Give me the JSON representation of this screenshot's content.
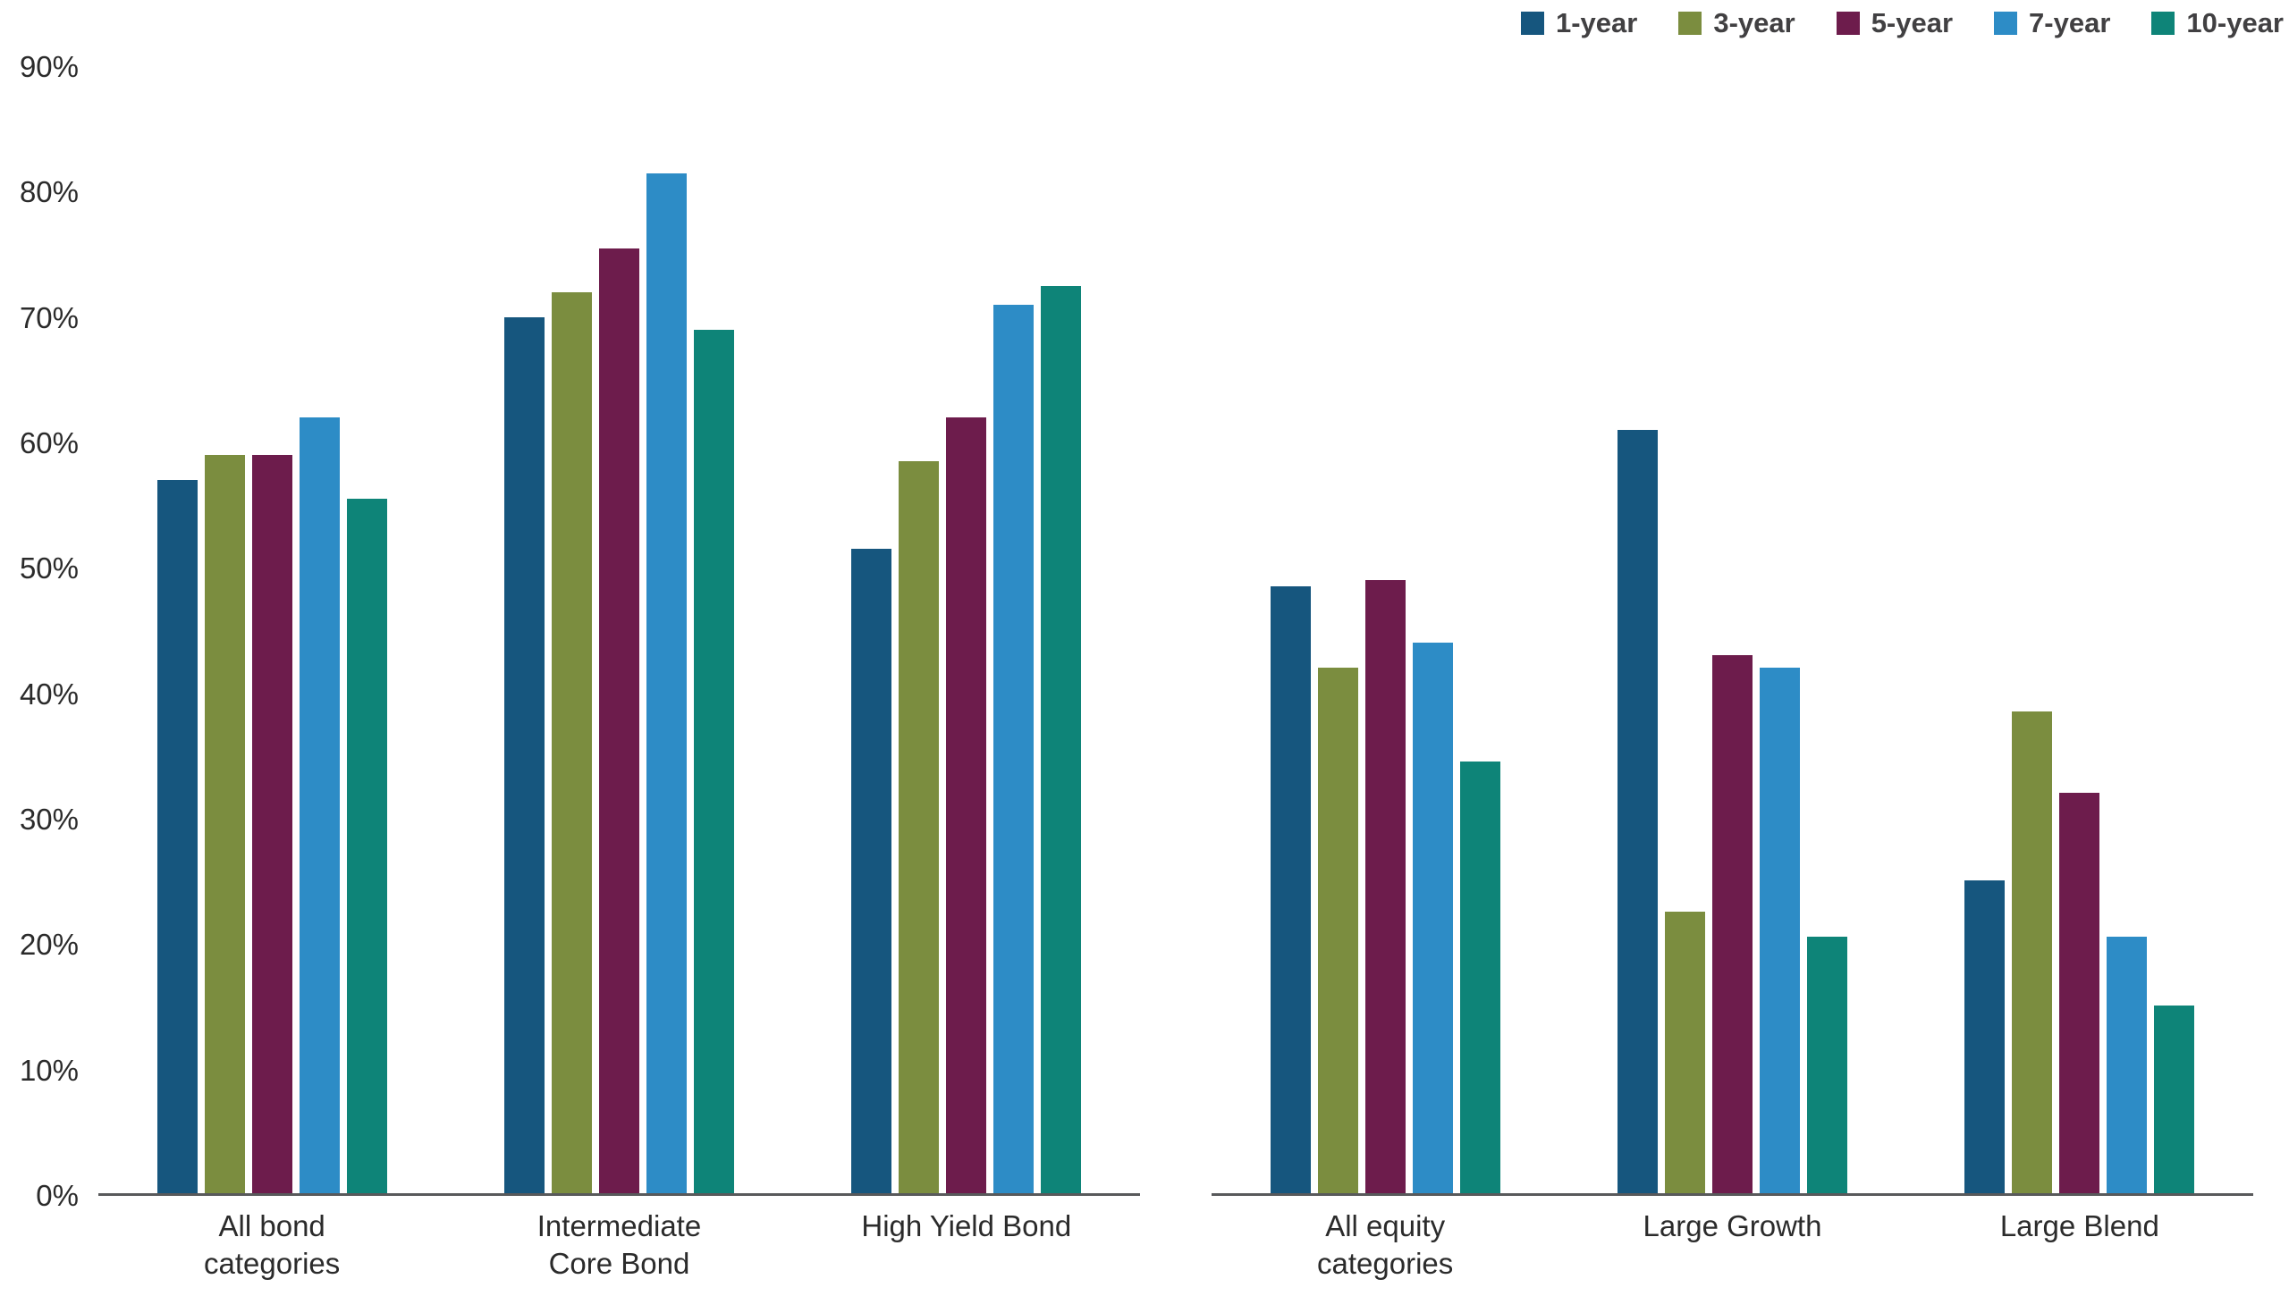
{
  "chart_data": {
    "type": "bar",
    "title": "",
    "xlabel": "",
    "ylabel": "",
    "unit": "%",
    "ylim": [
      0,
      90
    ],
    "y_ticks": [
      0,
      10,
      20,
      30,
      40,
      50,
      60,
      70,
      80,
      90
    ],
    "grid": false,
    "legend_position": "top-right",
    "series": [
      {
        "name": "1-year",
        "color": "#16567e"
      },
      {
        "name": "3-year",
        "color": "#7b8d3f"
      },
      {
        "name": "5-year",
        "color": "#6d1c4c"
      },
      {
        "name": "7-year",
        "color": "#2d8cc6"
      },
      {
        "name": "10-year",
        "color": "#0e8478"
      }
    ],
    "panels": [
      {
        "name": "bond-categories",
        "categories": [
          {
            "label_lines": [
              "All bond",
              "categories"
            ],
            "values": [
              57.0,
              59.0,
              59.0,
              62.0,
              55.5
            ]
          },
          {
            "label_lines": [
              "Intermediate",
              "Core Bond"
            ],
            "values": [
              70.0,
              72.0,
              75.5,
              81.5,
              69.0
            ]
          },
          {
            "label_lines": [
              "High Yield Bond"
            ],
            "values": [
              51.5,
              58.5,
              62.0,
              71.0,
              72.5
            ]
          }
        ]
      },
      {
        "name": "equity-categories",
        "categories": [
          {
            "label_lines": [
              "All equity",
              "categories"
            ],
            "values": [
              48.5,
              42.0,
              49.0,
              44.0,
              34.5
            ]
          },
          {
            "label_lines": [
              "Large Growth"
            ],
            "values": [
              61.0,
              22.5,
              43.0,
              42.0,
              20.5
            ]
          },
          {
            "label_lines": [
              "Large Blend"
            ],
            "values": [
              25.0,
              38.5,
              32.0,
              20.5,
              15.0
            ]
          }
        ]
      }
    ],
    "axis_color": "#58595b"
  }
}
